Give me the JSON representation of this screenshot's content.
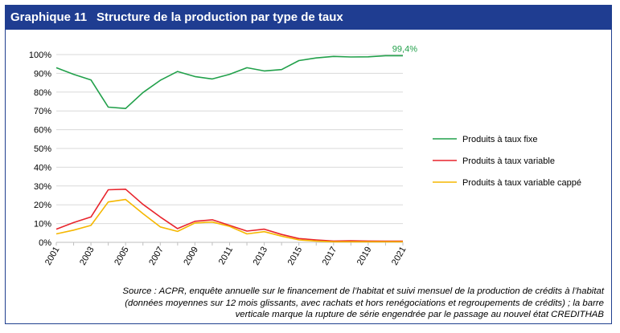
{
  "header": {
    "label": "Graphique 11",
    "title": "Structure de la production par type de taux"
  },
  "chart_data": {
    "type": "line",
    "title": "Structure de la production par type de taux",
    "x": [
      2001,
      2002,
      2003,
      2004,
      2005,
      2006,
      2007,
      2008,
      2009,
      2010,
      2011,
      2012,
      2013,
      2014,
      2015,
      2016,
      2017,
      2018,
      2019,
      2020,
      2021
    ],
    "x_tick_labels": [
      "2001",
      "2003",
      "2005",
      "2007",
      "2009",
      "2011",
      "2013",
      "2015",
      "2017",
      "2019",
      "2021"
    ],
    "y_tick_labels": [
      "0%",
      "10%",
      "20%",
      "30%",
      "40%",
      "50%",
      "60%",
      "70%",
      "80%",
      "90%",
      "100%"
    ],
    "ylim": [
      0,
      100
    ],
    "series": [
      {
        "name": "Produits à taux fixe",
        "color": "#21a04a",
        "values": [
          93,
          89.5,
          86.5,
          72,
          71.3,
          79.8,
          86.3,
          91,
          88.3,
          87,
          89.5,
          93,
          91.3,
          92,
          96.8,
          98.2,
          99,
          98.7,
          98.8,
          99.4,
          99.4
        ]
      },
      {
        "name": "Produits à taux variable",
        "color": "#e8242c",
        "values": [
          7,
          10.5,
          13.5,
          28,
          28.3,
          20.2,
          13.5,
          7.3,
          11.2,
          12,
          9,
          6,
          7,
          4.2,
          2,
          1.3,
          0.7,
          0.8,
          0.7,
          0.6,
          0.6
        ]
      },
      {
        "name": "Produits à taux variable cappé",
        "color": "#f5b700",
        "values": [
          4.5,
          6.5,
          9,
          21.5,
          22.8,
          15.3,
          8.2,
          5.8,
          10.3,
          10.8,
          8.5,
          4.5,
          5.7,
          3.3,
          1.3,
          0.7,
          0.3,
          0.3,
          0.3,
          0.3,
          0.3
        ]
      }
    ],
    "annotations": [
      {
        "text": "99,4%",
        "x": 2021,
        "y": 99.4,
        "series": "Produits à taux fixe"
      }
    ],
    "legend_position": "right"
  },
  "source": {
    "line1": "Source : ACPR, enquête annuelle sur le financement de l’habitat et suivi mensuel de la production de crédits à l’habitat",
    "line2": "(données moyennes sur 12 mois glissants, avec rachats et hors renégociations et regroupements de crédits) ; la barre",
    "line3": "verticale marque la rupture de série engendrée par le passage au nouvel état CREDITHAB"
  }
}
